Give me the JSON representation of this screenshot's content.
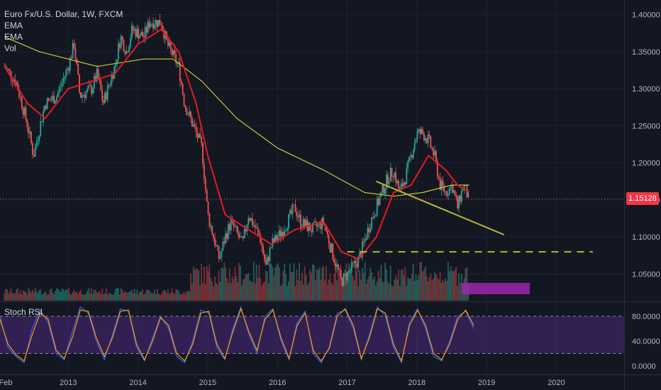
{
  "legend": {
    "symbol_line": "Euro Fx/U.S. Dollar, 1W, FXCM",
    "ind1": "EMA",
    "ind2": "EMA",
    "ind3": "Vol"
  },
  "stoch": {
    "label": "Stoch RSI"
  },
  "price_label": "1.15128",
  "colors": {
    "background": "#131722",
    "up": "#26a69a",
    "down": "#ef5350",
    "ema_fast": "#e31b23",
    "ema_slow": "#c8c832",
    "trend": "#b5b82e",
    "stoch_k": "#2962ff",
    "stoch_d": "#ff9800",
    "stoch_band": "#5b2c8f",
    "box": "#9c27b0"
  },
  "chart_data": [
    {
      "type": "candlestick",
      "title": "Euro Fx/U.S. Dollar, 1W, FXCM",
      "y_ticks": [
        "1.40000",
        "1.35000",
        "1.30000",
        "1.25000",
        "1.20000",
        "1.15000",
        "1.10000",
        "1.05000"
      ],
      "ylim": [
        1.02,
        1.415
      ],
      "x_ticks": [
        "Feb",
        "2013",
        "2014",
        "2015",
        "2016",
        "2017",
        "2018",
        "2019",
        "2020"
      ],
      "last_price": 1.15128,
      "close_path": [
        [
          "2012-02",
          1.33
        ],
        [
          "2012-04",
          1.31
        ],
        [
          "2012-06",
          1.25
        ],
        [
          "2012-07",
          1.21
        ],
        [
          "2012-09",
          1.28
        ],
        [
          "2012-11",
          1.29
        ],
        [
          "2013-01",
          1.33
        ],
        [
          "2013-02",
          1.36
        ],
        [
          "2013-03",
          1.29
        ],
        [
          "2013-05",
          1.3
        ],
        [
          "2013-06",
          1.32
        ],
        [
          "2013-07",
          1.28
        ],
        [
          "2013-09",
          1.33
        ],
        [
          "2013-10",
          1.37
        ],
        [
          "2013-11",
          1.35
        ],
        [
          "2013-12",
          1.38
        ],
        [
          "2014-02",
          1.37
        ],
        [
          "2014-03",
          1.39
        ],
        [
          "2014-05",
          1.39
        ],
        [
          "2014-06",
          1.36
        ],
        [
          "2014-08",
          1.33
        ],
        [
          "2014-09",
          1.28
        ],
        [
          "2014-10",
          1.26
        ],
        [
          "2014-12",
          1.22
        ],
        [
          "2015-01",
          1.13
        ],
        [
          "2015-03",
          1.07
        ],
        [
          "2015-04",
          1.1
        ],
        [
          "2015-05",
          1.12
        ],
        [
          "2015-07",
          1.09
        ],
        [
          "2015-08",
          1.13
        ],
        [
          "2015-10",
          1.1
        ],
        [
          "2015-11",
          1.06
        ],
        [
          "2015-12",
          1.09
        ],
        [
          "2016-02",
          1.11
        ],
        [
          "2016-04",
          1.14
        ],
        [
          "2016-05",
          1.12
        ],
        [
          "2016-07",
          1.11
        ],
        [
          "2016-09",
          1.12
        ],
        [
          "2016-10",
          1.09
        ],
        [
          "2016-12",
          1.04
        ],
        [
          "2017-02",
          1.06
        ],
        [
          "2017-03",
          1.07
        ],
        [
          "2017-05",
          1.12
        ],
        [
          "2017-06",
          1.14
        ],
        [
          "2017-08",
          1.18
        ],
        [
          "2017-09",
          1.19
        ],
        [
          "2017-10",
          1.16
        ],
        [
          "2017-11",
          1.18
        ],
        [
          "2018-01",
          1.24
        ],
        [
          "2018-02",
          1.24
        ],
        [
          "2018-03",
          1.23
        ],
        [
          "2018-04",
          1.21
        ],
        [
          "2018-05",
          1.17
        ],
        [
          "2018-06",
          1.16
        ],
        [
          "2018-07",
          1.17
        ],
        [
          "2018-08",
          1.14
        ],
        [
          "2018-09",
          1.17
        ],
        [
          "2018-10",
          1.15
        ]
      ],
      "ema_fast": [
        [
          "2012-02",
          1.33
        ],
        [
          "2012-06",
          1.28
        ],
        [
          "2012-09",
          1.26
        ],
        [
          "2013-01",
          1.3
        ],
        [
          "2013-05",
          1.31
        ],
        [
          "2013-09",
          1.32
        ],
        [
          "2014-01",
          1.36
        ],
        [
          "2014-05",
          1.38
        ],
        [
          "2014-08",
          1.35
        ],
        [
          "2014-11",
          1.28
        ],
        [
          "2015-01",
          1.21
        ],
        [
          "2015-04",
          1.13
        ],
        [
          "2015-08",
          1.11
        ],
        [
          "2015-12",
          1.09
        ],
        [
          "2016-04",
          1.11
        ],
        [
          "2016-09",
          1.12
        ],
        [
          "2016-12",
          1.08
        ],
        [
          "2017-03",
          1.07
        ],
        [
          "2017-06",
          1.1
        ],
        [
          "2017-09",
          1.16
        ],
        [
          "2017-12",
          1.17
        ],
        [
          "2018-03",
          1.21
        ],
        [
          "2018-06",
          1.19
        ],
        [
          "2018-08",
          1.17
        ],
        [
          "2018-10",
          1.16
        ]
      ],
      "ema_slow": [
        [
          "2012-02",
          1.37
        ],
        [
          "2012-08",
          1.35
        ],
        [
          "2013-06",
          1.33
        ],
        [
          "2014-02",
          1.34
        ],
        [
          "2014-07",
          1.34
        ],
        [
          "2014-12",
          1.31
        ],
        [
          "2015-06",
          1.26
        ],
        [
          "2016-01",
          1.22
        ],
        [
          "2016-09",
          1.19
        ],
        [
          "2017-04",
          1.16
        ],
        [
          "2017-09",
          1.155
        ],
        [
          "2018-02",
          1.16
        ],
        [
          "2018-07",
          1.17
        ],
        [
          "2018-10",
          1.17
        ]
      ],
      "trendline": [
        [
          "2017-06",
          1.175
        ],
        [
          "2019-04",
          1.103
        ]
      ],
      "support_line": {
        "y": 1.08,
        "from": "2017-01",
        "to": "2020-06"
      },
      "volume": {
        "ylim": [
          0,
          100
        ]
      }
    },
    {
      "type": "line",
      "title": "Stoch RSI",
      "y_ticks": [
        "80.0000",
        "40.0000",
        "0.0000"
      ],
      "ylim": [
        0,
        100
      ],
      "band": [
        20,
        80
      ],
      "series": [
        {
          "values": [
            80,
            30,
            15,
            5,
            60,
            90,
            70,
            20,
            10,
            55,
            95,
            85,
            40,
            10,
            50,
            92,
            88,
            30,
            8,
            45,
            80,
            60,
            15,
            5,
            40,
            90,
            85,
            30,
            10,
            60,
            95,
            50,
            20,
            80,
            92,
            40,
            10,
            70,
            88,
            20,
            5,
            30,
            85,
            90,
            60,
            10,
            50,
            95,
            80,
            30,
            5,
            70,
            92,
            60,
            15,
            8,
            40,
            80,
            88,
            60
          ]
        },
        {
          "values": [
            75,
            35,
            18,
            8,
            50,
            85,
            75,
            25,
            12,
            45,
            90,
            88,
            45,
            15,
            45,
            88,
            90,
            35,
            10,
            40,
            78,
            65,
            20,
            8,
            35,
            85,
            88,
            35,
            12,
            55,
            92,
            55,
            25,
            75,
            90,
            45,
            12,
            65,
            85,
            25,
            8,
            28,
            80,
            92,
            65,
            12,
            45,
            92,
            85,
            35,
            8,
            65,
            90,
            65,
            20,
            10,
            35,
            75,
            90,
            65
          ]
        }
      ]
    }
  ]
}
